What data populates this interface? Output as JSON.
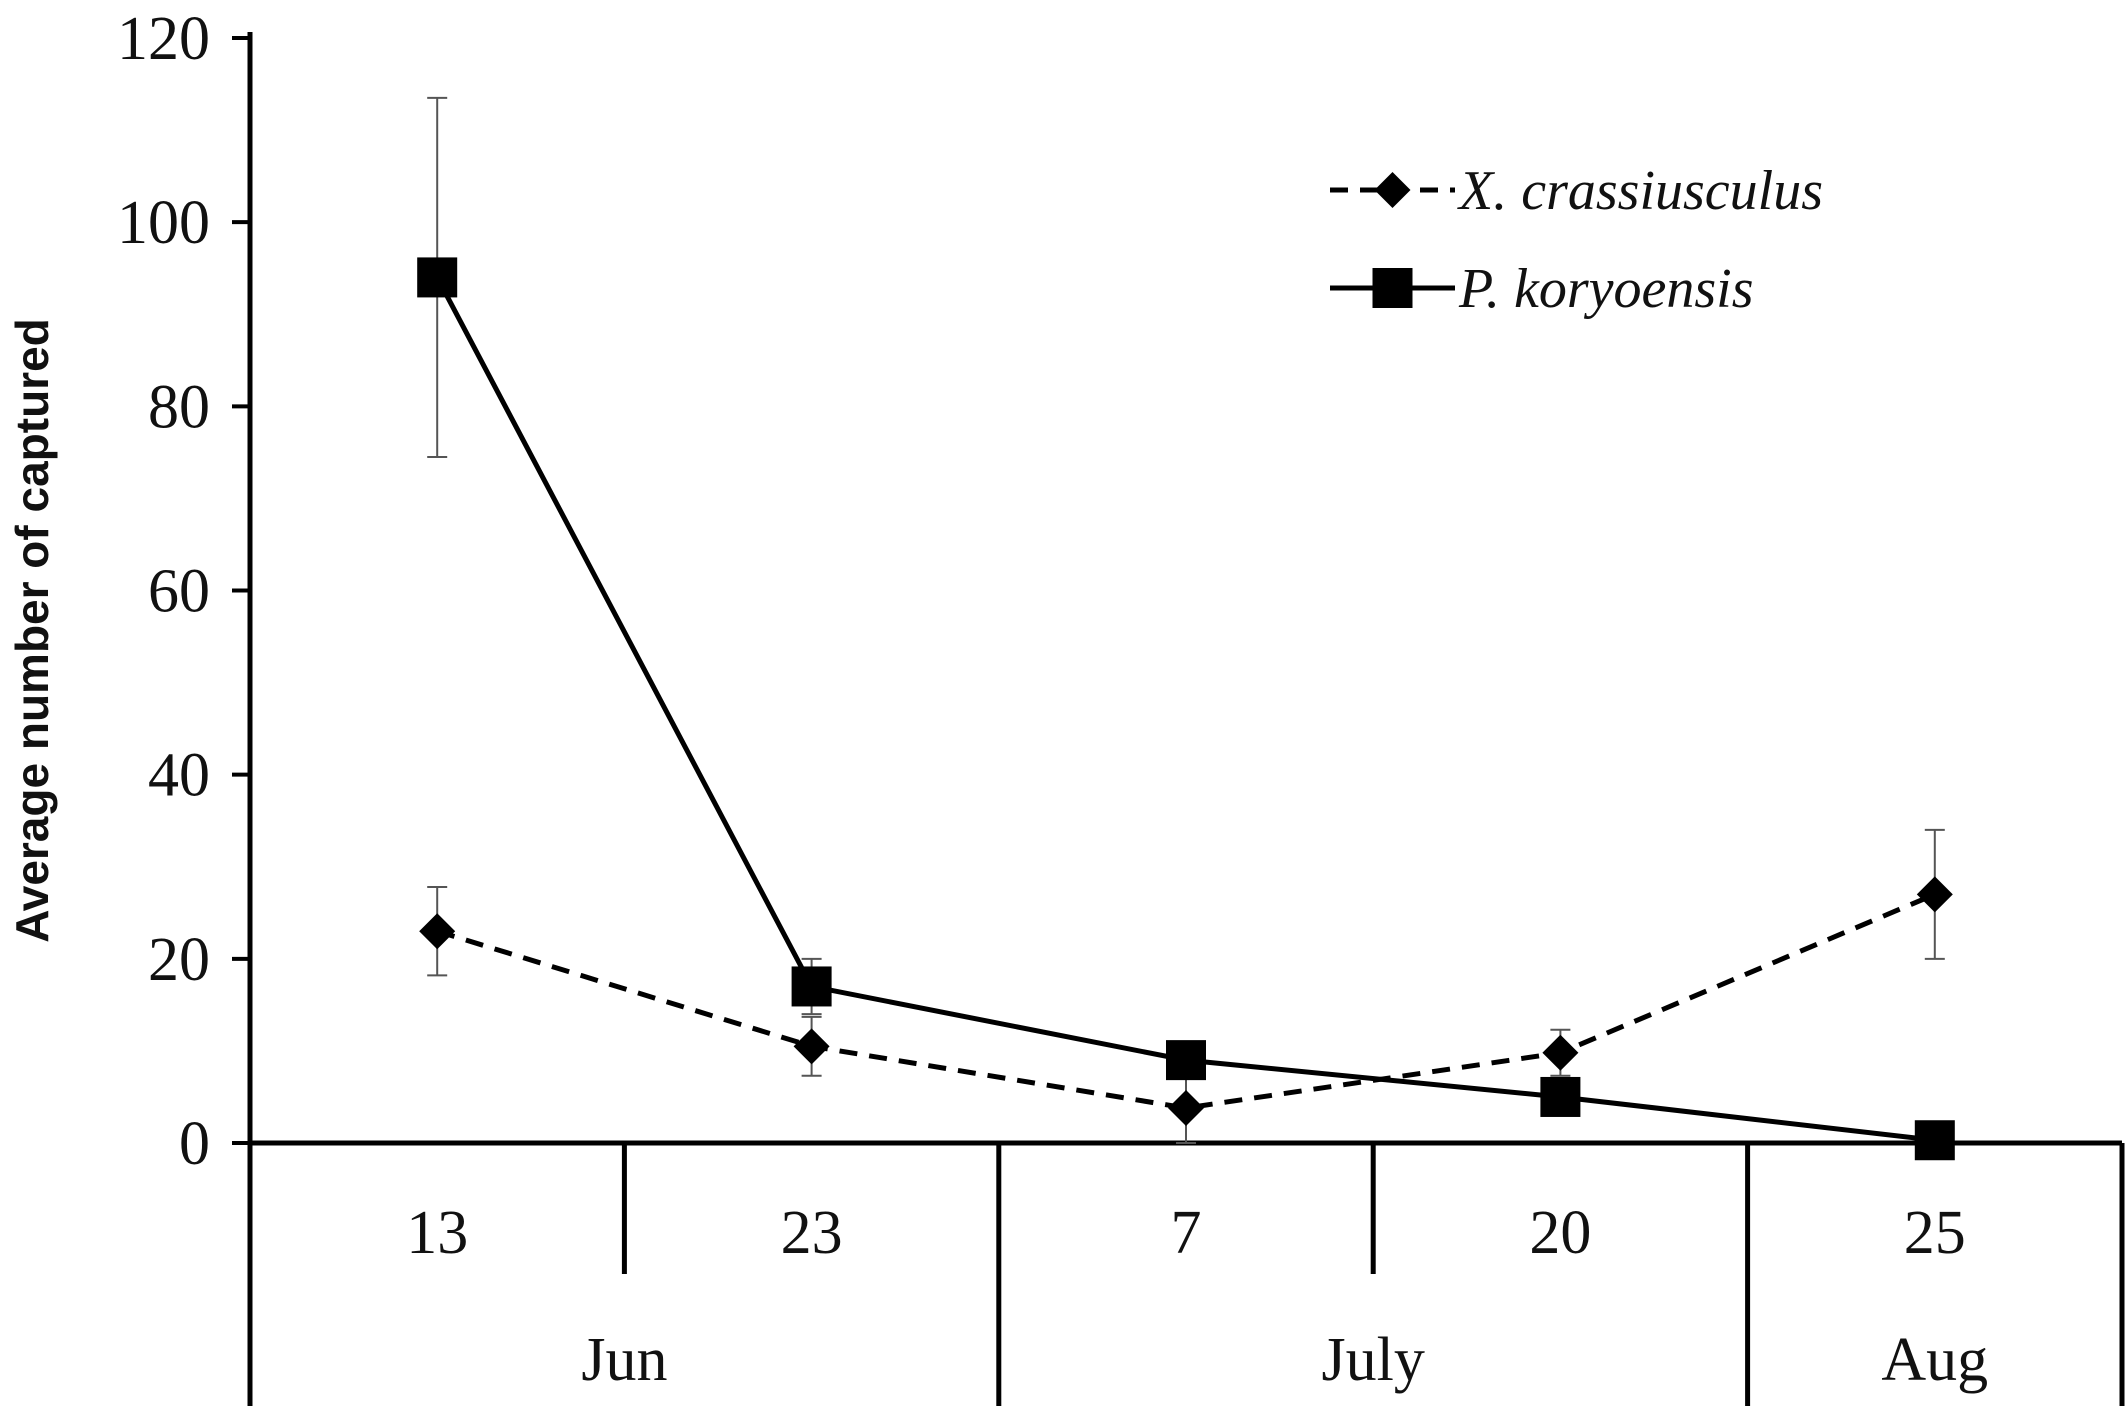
{
  "chart_data": {
    "type": "line",
    "title": "",
    "ylabel": "Average number of  captured",
    "xlabel": "",
    "ylim": [
      0,
      120
    ],
    "yticks": [
      0,
      20,
      40,
      60,
      80,
      100,
      120
    ],
    "categories": [
      "13",
      "23",
      "7",
      "20",
      "25"
    ],
    "month_groups": [
      {
        "label": "Jun",
        "span": [
          0,
          1
        ]
      },
      {
        "label": "July",
        "span": [
          2,
          3
        ]
      },
      {
        "label": "Aug",
        "span": [
          4,
          4
        ]
      }
    ],
    "legend_position": "top-right",
    "series": [
      {
        "name": "X. crassiusculus",
        "marker": "diamond",
        "line_style": "dashed",
        "values": [
          23,
          10.5,
          3.8,
          9.8,
          27
        ],
        "error": [
          4.8,
          3.2,
          3.8,
          2.5,
          7
        ]
      },
      {
        "name": "P. koryoensis",
        "marker": "square",
        "line_style": "solid",
        "values": [
          94,
          17,
          9,
          5,
          0.3
        ],
        "error": [
          19.5,
          3,
          1.5,
          1.2,
          0.3
        ]
      }
    ]
  }
}
